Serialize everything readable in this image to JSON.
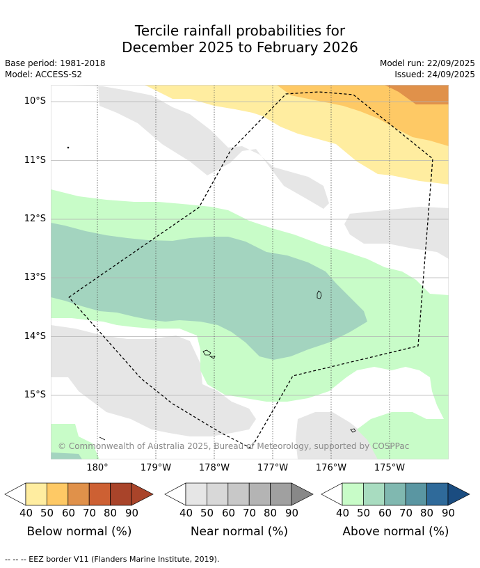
{
  "title": {
    "line1": "Tercile rainfall probabilities for",
    "line2": "December 2025 to February 2026"
  },
  "info": {
    "base_period": "Base period: 1981-2018",
    "model": "Model: ACCESS-S2",
    "model_run": "Model run: 22/09/2025",
    "issued": "Issued: 24/09/2025"
  },
  "map": {
    "lat_labels": [
      "10°S",
      "11°S",
      "12°S",
      "13°S",
      "14°S",
      "15°S"
    ],
    "lon_labels": [
      "180°",
      "179°W",
      "178°W",
      "177°W",
      "176°W",
      "175°W"
    ],
    "copyright": "© Commonwealth of Australia 2025, Bureau of Meteorology, supported by COSPPac"
  },
  "colorbars": [
    {
      "title": "Below normal (%)",
      "ticks": [
        "40",
        "50",
        "60",
        "70",
        "80",
        "90"
      ],
      "colors": [
        "#ffffff",
        "#ffeda0",
        "#fec965",
        "#e0914a",
        "#cd6033",
        "#a9442a",
        "#a9442a"
      ]
    },
    {
      "title": "Near normal (%)",
      "ticks": [
        "40",
        "50",
        "60",
        "70",
        "80",
        "90"
      ],
      "colors": [
        "#ffffff",
        "#e6e6e6",
        "#d8d8d8",
        "#c8c8c8",
        "#b4b4b4",
        "#a0a0a0",
        "#888888"
      ]
    },
    {
      "title": "Above normal (%)",
      "ticks": [
        "40",
        "50",
        "60",
        "70",
        "80",
        "90"
      ],
      "colors": [
        "#ffffff",
        "#c8fcc8",
        "#a8dcc0",
        "#80b8b0",
        "#5a96a2",
        "#2f6a9a",
        "#1a4c80"
      ]
    }
  ],
  "footer": {
    "eez_note": "--  --  -- EEZ border V11 (Flanders Marine Institute, 2019)."
  }
}
